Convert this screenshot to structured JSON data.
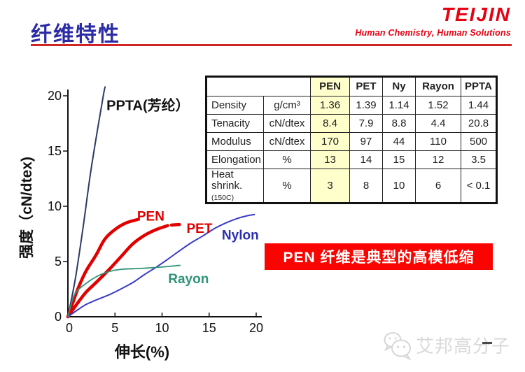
{
  "slide": {
    "title": "纤维特性",
    "logo": {
      "brand": "TEIJIN",
      "tagline": "Human Chemistry, Human Solutions"
    },
    "banner": "PEN 纤维是典型的高模低缩",
    "watermark": "艾邦高分子"
  },
  "chart_data": {
    "type": "line",
    "title": "",
    "xlabel": "伸长(%)",
    "ylabel": "强度（cN/dtex)",
    "xlim": [
      0,
      20
    ],
    "ylim": [
      0,
      21
    ],
    "xticks": [
      "0",
      "5",
      "10",
      "15",
      "20"
    ],
    "yticks": [
      "0",
      "5",
      "10",
      "15",
      "20"
    ],
    "grid": false,
    "legend": "inline-labels",
    "series": [
      {
        "name": "PPTA",
        "color": "#2a3a66",
        "width": 2,
        "points": [
          [
            0,
            0
          ],
          [
            0.8,
            3.5
          ],
          [
            1.6,
            8
          ],
          [
            2.4,
            13
          ],
          [
            3.2,
            17.2
          ],
          [
            3.8,
            20.2
          ],
          [
            3.95,
            20.8
          ]
        ]
      },
      {
        "name": "PEN",
        "color": "#e00000",
        "width": 4.5,
        "points": [
          [
            0,
            0
          ],
          [
            0.5,
            1.2
          ],
          [
            1,
            2.4
          ],
          [
            1.9,
            4.1
          ],
          [
            3,
            5.6
          ],
          [
            3.9,
            7
          ],
          [
            5,
            7.9
          ],
          [
            6.2,
            8.5
          ],
          [
            7.4,
            8.8
          ]
        ]
      },
      {
        "name": "PET",
        "color": "#e00000",
        "width": 4.5,
        "points": [
          [
            0,
            0
          ],
          [
            1,
            1.2
          ],
          [
            1.9,
            2.2
          ],
          [
            3,
            3.1
          ],
          [
            4.4,
            4.3
          ],
          [
            5.7,
            5.5
          ],
          [
            6.9,
            6.6
          ],
          [
            8.2,
            7.4
          ],
          [
            9.4,
            7.9
          ],
          [
            10.6,
            8.25
          ]
        ]
      },
      {
        "name": "Nylon",
        "color": "#3a3ac8",
        "width": 2,
        "points": [
          [
            0,
            0
          ],
          [
            1,
            0.6
          ],
          [
            1.9,
            1.1
          ],
          [
            3.1,
            1.55
          ],
          [
            4.4,
            2
          ],
          [
            5.6,
            2.5
          ],
          [
            6.9,
            3.1
          ],
          [
            8.1,
            3.8
          ],
          [
            9.4,
            4.5
          ],
          [
            10.6,
            5.2
          ],
          [
            11.9,
            6
          ],
          [
            13.1,
            6.7
          ],
          [
            14.3,
            7.3
          ],
          [
            15.6,
            8
          ],
          [
            16.8,
            8.5
          ],
          [
            18,
            8.9
          ],
          [
            19.1,
            9.15
          ],
          [
            19.8,
            9.25
          ]
        ]
      },
      {
        "name": "Rayon",
        "color": "#2f9377",
        "width": 1.8,
        "points": [
          [
            0,
            0
          ],
          [
            0.7,
            2
          ],
          [
            1.9,
            3
          ],
          [
            3.2,
            3.7
          ],
          [
            4.4,
            4.1
          ],
          [
            5.7,
            4.3
          ],
          [
            7,
            4.35
          ],
          [
            8.2,
            4.4
          ],
          [
            10,
            4.5
          ],
          [
            11.9,
            4.65
          ]
        ]
      }
    ],
    "curve_labels": [
      {
        "text": "PPTA(芳纶）",
        "x": 4.1,
        "y": 18.7,
        "color": "#111111",
        "size": 20
      },
      {
        "text": "PEN",
        "x": 7.35,
        "y": 8.7,
        "color": "#e00000",
        "size": 19
      },
      {
        "text": "PET",
        "x": 12.6,
        "y": 7.6,
        "color": "#e00000",
        "size": 19,
        "leader": [
          [
            11.0,
            8.3
          ],
          [
            11.85,
            8.35
          ]
        ]
      },
      {
        "text": "Nylon",
        "x": 16.35,
        "y": 7.0,
        "color": "#2b2fb0",
        "size": 19
      },
      {
        "text": "Rayon",
        "x": 10.65,
        "y": 3.05,
        "color": "#2f9377",
        "size": 19
      }
    ]
  },
  "table": {
    "header": [
      "PEN",
      "PET",
      "Ny",
      "Rayon",
      "PPTA"
    ],
    "rows": [
      {
        "property": "Density",
        "note": "",
        "unit": "g/cm³",
        "values": [
          "1.36",
          "1.39",
          "1.14",
          "1.52",
          "1.44"
        ],
        "pen_red": false
      },
      {
        "property": "Tenacity",
        "note": "",
        "unit": "cN/dtex",
        "values": [
          "8.4",
          "7.9",
          "8.8",
          "4.4",
          "20.8"
        ],
        "pen_red": true
      },
      {
        "property": "Modulus",
        "note": "",
        "unit": "cN/dtex",
        "values": [
          "170",
          "97",
          "44",
          "110",
          "500"
        ],
        "pen_red": true
      },
      {
        "property": "Elongation",
        "note": "",
        "unit": "%",
        "values": [
          "13",
          "14",
          "15",
          "12",
          "3.5"
        ],
        "pen_red": false
      },
      {
        "property": "Heat shrink.",
        "note": "(150C)",
        "unit": "%",
        "values": [
          "3",
          "8",
          "10",
          "6",
          "< 0.1"
        ],
        "pen_red": true
      }
    ],
    "highlight_color": "#ffffcc"
  }
}
